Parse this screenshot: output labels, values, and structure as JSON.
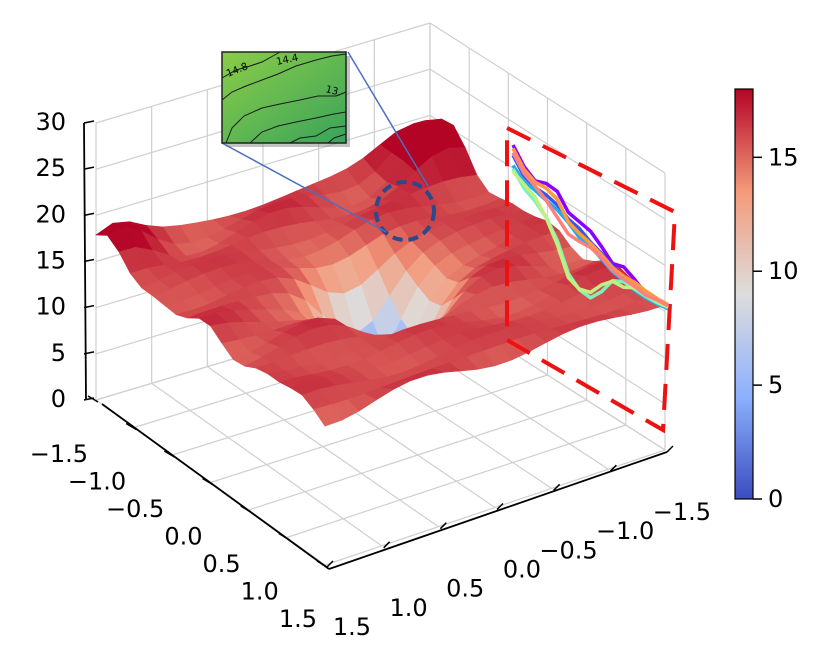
{
  "chart_data": [
    {
      "type": "surface3d",
      "title": "",
      "xlabel": "",
      "ylabel": "",
      "zlabel": "",
      "x_ticks": [
        "−1.5",
        "−1.0",
        "−0.5",
        "0.0",
        "0.5",
        "1.0",
        "1.5"
      ],
      "y_ticks": [
        "−1.5",
        "−1.0",
        "−0.5",
        "0.0",
        "0.5",
        "1.0",
        "1.5"
      ],
      "z_ticks": [
        "0",
        "5",
        "10",
        "15",
        "20",
        "25",
        "30"
      ],
      "xlim": [
        -1.5,
        1.5
      ],
      "ylim": [
        -1.5,
        1.5
      ],
      "zlim": [
        0,
        30
      ],
      "grid": true,
      "colormap": "coolwarm",
      "surface_z_range": [
        3,
        22
      ],
      "surface_description_values": {
        "corner_peak_z": 22,
        "edge_z": 16,
        "center_min_z": 3
      }
    },
    {
      "type": "colorbar",
      "ticks": [
        "0",
        "5",
        "10",
        "15"
      ],
      "range": [
        0,
        18
      ],
      "colors": [
        "#3b4cc0",
        "#8db0fe",
        "#dddddd",
        "#f49a7b",
        "#b40426"
      ]
    },
    {
      "type": "line",
      "role": "side-projection",
      "x": [
        0,
        1,
        2,
        3,
        4,
        5,
        6,
        7,
        8,
        9,
        10,
        11,
        12,
        13,
        14
      ],
      "series": [
        {
          "color": "#8b00ff",
          "values": [
            17.5,
            15.2,
            14.0,
            14.5,
            14.2,
            12.0,
            11.5,
            11.0,
            9.6,
            8.0,
            8.4,
            7.4,
            6.2,
            6.0,
            6.0
          ]
        },
        {
          "color": "#3a55ee",
          "values": [
            16.0,
            13.8,
            13.0,
            12.8,
            12.2,
            11.0,
            10.5,
            9.4,
            8.6,
            7.6,
            6.8,
            6.4,
            6.0,
            5.8,
            6.0
          ]
        },
        {
          "color": "#22aaee",
          "values": [
            14.5,
            13.0,
            12.6,
            12.0,
            11.5,
            10.5,
            9.2,
            8.8,
            7.8,
            6.8,
            6.4,
            5.8,
            5.6,
            5.6,
            5.8
          ]
        },
        {
          "color": "#7ef0b8",
          "values": [
            14.0,
            12.0,
            11.0,
            9.5,
            7.0,
            3.0,
            1.5,
            1.2,
            3.0,
            5.5,
            6.2,
            6.0,
            5.8,
            5.8,
            6.0
          ]
        },
        {
          "color": "#c0f080",
          "values": [
            13.6,
            12.6,
            11.6,
            9.4,
            6.4,
            2.4,
            1.6,
            2.0,
            4.0,
            5.4,
            5.4,
            6.2,
            6.2,
            6.0,
            6.0
          ]
        },
        {
          "color": "#ff9a3c",
          "values": [
            17.0,
            14.8,
            13.8,
            13.8,
            13.0,
            10.6,
            9.8,
            9.2,
            8.4,
            7.4,
            7.0,
            7.0,
            6.6,
            6.4,
            6.4
          ]
        },
        {
          "color": "#ff7f7f",
          "values": [
            16.4,
            14.2,
            13.2,
            12.0,
            10.4,
            8.8,
            8.6,
            8.6,
            8.0,
            7.0,
            6.6,
            6.4,
            6.0,
            6.2,
            6.2
          ]
        }
      ]
    },
    {
      "type": "heatmap",
      "role": "zoom-inset",
      "contour_labels": [
        "14.8",
        "14.4",
        "13."
      ],
      "colors": [
        "#2f9e57",
        "#8acd48"
      ]
    }
  ]
}
